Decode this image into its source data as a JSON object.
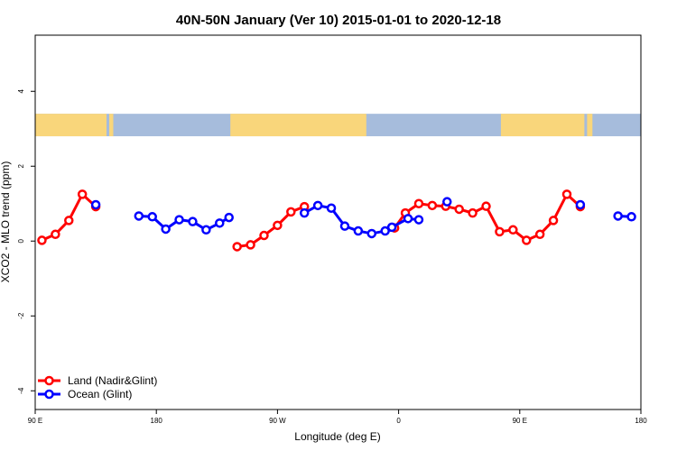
{
  "chart_data": {
    "type": "line",
    "title": "40N-50N January (Ver 10)   2015-01-01 to 2020-12-18",
    "xlabel": "Longitude (deg E)",
    "ylabel": "XCO2 - MLO trend (ppm)",
    "xlim": [
      90,
      540
    ],
    "ylim": [
      -4.5,
      5.5
    ],
    "x_ticks": [
      {
        "value": 90,
        "label": "90 E"
      },
      {
        "value": 180,
        "label": "180"
      },
      {
        "value": 270,
        "label": "90 W"
      },
      {
        "value": 360,
        "label": "0"
      },
      {
        "value": 450,
        "label": "90 E"
      },
      {
        "value": 540,
        "label": "180"
      }
    ],
    "y_ticks": [
      {
        "value": -4,
        "label": "-4"
      },
      {
        "value": -2,
        "label": "-2"
      },
      {
        "value": 0,
        "label": "0"
      },
      {
        "value": 2,
        "label": "2"
      },
      {
        "value": 4,
        "label": "4"
      }
    ],
    "legend_position": "bottom-left",
    "map_band": {
      "y_range": [
        2.8,
        3.4
      ],
      "land_color": "#f9d67b",
      "ocean_color": "#a6bcdc",
      "land_x_ranges": [
        [
          90,
          143
        ],
        [
          145,
          148
        ],
        [
          235,
          336
        ],
        [
          436,
          498
        ],
        [
          500,
          504
        ]
      ]
    },
    "series": [
      {
        "name": "Land (Nadir&Glint)",
        "color": "#ff0000",
        "segments": [
          [
            [
              95,
              0.02
            ],
            [
              105,
              0.18
            ],
            [
              115,
              0.55
            ],
            [
              125,
              1.25
            ],
            [
              135,
              0.92
            ]
          ],
          [
            [
              240,
              -0.15
            ],
            [
              250,
              -0.1
            ],
            [
              260,
              0.15
            ],
            [
              270,
              0.42
            ],
            [
              280,
              0.78
            ],
            [
              290,
              0.92
            ]
          ],
          [
            [
              357,
              0.35
            ],
            [
              365,
              0.75
            ],
            [
              375,
              1.0
            ],
            [
              385,
              0.95
            ],
            [
              395,
              0.93
            ],
            [
              405,
              0.85
            ],
            [
              415,
              0.75
            ],
            [
              425,
              0.93
            ],
            [
              435,
              0.25
            ],
            [
              445,
              0.3
            ],
            [
              455,
              0.02
            ],
            [
              465,
              0.18
            ],
            [
              475,
              0.55
            ],
            [
              485,
              1.25
            ],
            [
              495,
              0.92
            ]
          ]
        ]
      },
      {
        "name": "Ocean (Glint)",
        "color": "#0000ff",
        "segments": [
          [
            [
              135,
              0.97
            ]
          ],
          [
            [
              167,
              0.67
            ],
            [
              177,
              0.65
            ],
            [
              187,
              0.32
            ],
            [
              197,
              0.57
            ],
            [
              207,
              0.52
            ],
            [
              217,
              0.3
            ],
            [
              227,
              0.48
            ],
            [
              234,
              0.63
            ]
          ],
          [
            [
              290,
              0.75
            ],
            [
              300,
              0.95
            ],
            [
              310,
              0.88
            ],
            [
              320,
              0.4
            ],
            [
              330,
              0.27
            ],
            [
              340,
              0.2
            ],
            [
              350,
              0.27
            ],
            [
              355,
              0.37
            ],
            [
              367,
              0.6
            ],
            [
              375,
              0.57
            ]
          ],
          [
            [
              396,
              1.05
            ]
          ],
          [
            [
              495,
              0.97
            ]
          ],
          [
            [
              523,
              0.67
            ],
            [
              533,
              0.65
            ]
          ]
        ]
      }
    ]
  }
}
